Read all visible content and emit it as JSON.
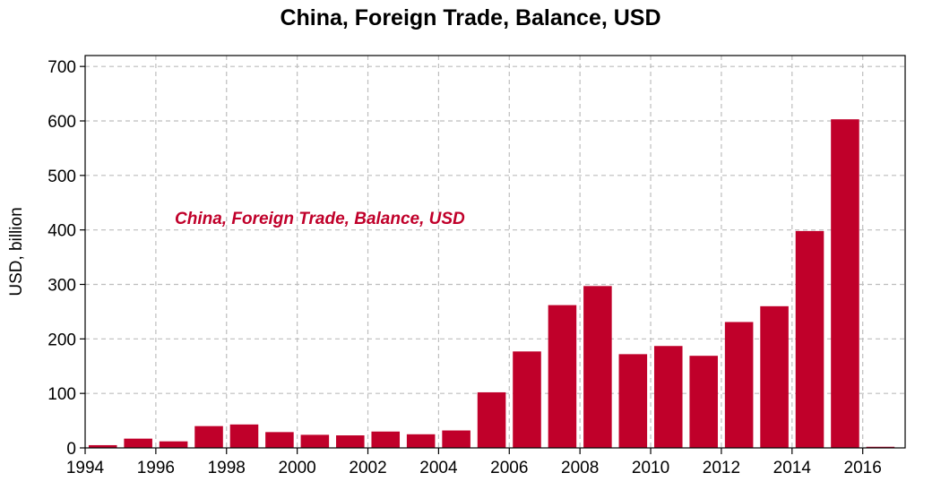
{
  "chart_data": {
    "type": "bar",
    "title": "China, Foreign Trade, Balance, USD",
    "annotation": "China, Foreign Trade, Balance, USD",
    "ylabel": "USD, billion",
    "xlabel": "",
    "bar_color": "#c0002a",
    "ylim": [
      0,
      720
    ],
    "xlim": [
      1994,
      2017.2
    ],
    "yticks": [
      0,
      100,
      200,
      300,
      400,
      500,
      600,
      700
    ],
    "xticks": [
      1994,
      1996,
      1998,
      2000,
      2002,
      2004,
      2006,
      2008,
      2010,
      2012,
      2014,
      2016
    ],
    "grid": true,
    "x": [
      1994,
      1995,
      1996,
      1997,
      1998,
      1999,
      2000,
      2001,
      2002,
      2003,
      2004,
      2005,
      2006,
      2007,
      2008,
      2009,
      2010,
      2011,
      2012,
      2013,
      2014,
      2015
    ],
    "values": [
      5,
      17,
      12,
      40,
      43,
      29,
      24,
      23,
      30,
      25,
      32,
      102,
      177,
      262,
      297,
      172,
      187,
      169,
      231,
      260,
      398,
      603
    ]
  }
}
